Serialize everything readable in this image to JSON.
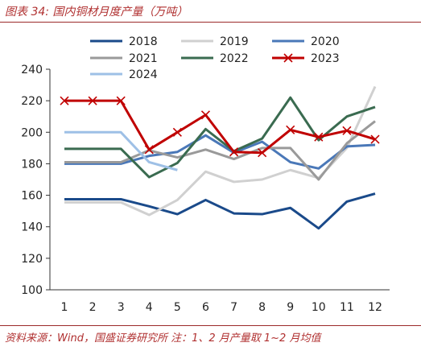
{
  "header": {
    "title": "图表 34:  国内铜材月度产量（万吨）"
  },
  "footer": {
    "source": "资料来源：Wind，国盛证券研究所   注：1、2 月产量取 1~2 月均值"
  },
  "colors": {
    "2018": "#1a4a8a",
    "2019": "#d0d0d0",
    "2020": "#4a78b8",
    "2021": "#9a9a9a",
    "2022": "#3a6b50",
    "2023": "#c00000",
    "2024": "#9ec0e6"
  },
  "chart_data": {
    "type": "line",
    "title": "国内铜材月度产量（万吨）",
    "xlabel": "",
    "ylabel": "",
    "x": [
      1,
      2,
      3,
      4,
      5,
      6,
      7,
      8,
      9,
      10,
      11,
      12
    ],
    "xticks": [
      "1",
      "2",
      "3",
      "4",
      "5",
      "6",
      "7",
      "8",
      "9",
      "10",
      "11",
      "12"
    ],
    "ylim": [
      100,
      240
    ],
    "yticks": [
      100,
      120,
      140,
      160,
      180,
      200,
      220,
      240
    ],
    "grid": false,
    "legend": "top",
    "series": [
      {
        "name": "2018",
        "values": [
          157.5,
          157.5,
          157.5,
          153,
          148,
          157,
          148.5,
          148,
          152,
          139,
          156,
          161
        ]
      },
      {
        "name": "2019",
        "values": [
          155.5,
          155.5,
          155.5,
          147.5,
          157,
          175,
          168.5,
          170,
          176,
          171,
          190,
          229
        ]
      },
      {
        "name": "2020",
        "values": [
          180,
          180,
          180,
          185,
          187.5,
          198,
          187,
          194,
          181,
          177,
          191,
          192
        ]
      },
      {
        "name": "2021",
        "values": [
          181,
          181,
          181,
          188.5,
          184,
          189,
          183,
          190,
          190,
          170,
          193,
          207
        ]
      },
      {
        "name": "2022",
        "values": [
          189.5,
          189.5,
          189.5,
          171.5,
          180.5,
          202,
          188,
          196,
          222,
          195,
          210,
          216
        ]
      },
      {
        "name": "2023",
        "values": [
          220,
          220,
          220,
          189,
          200,
          211,
          187.5,
          187,
          201.5,
          197,
          201,
          195.5
        ]
      },
      {
        "name": "2024",
        "values": [
          200,
          200,
          200,
          181,
          176,
          null,
          null,
          null,
          null,
          null,
          null,
          null
        ]
      }
    ]
  }
}
